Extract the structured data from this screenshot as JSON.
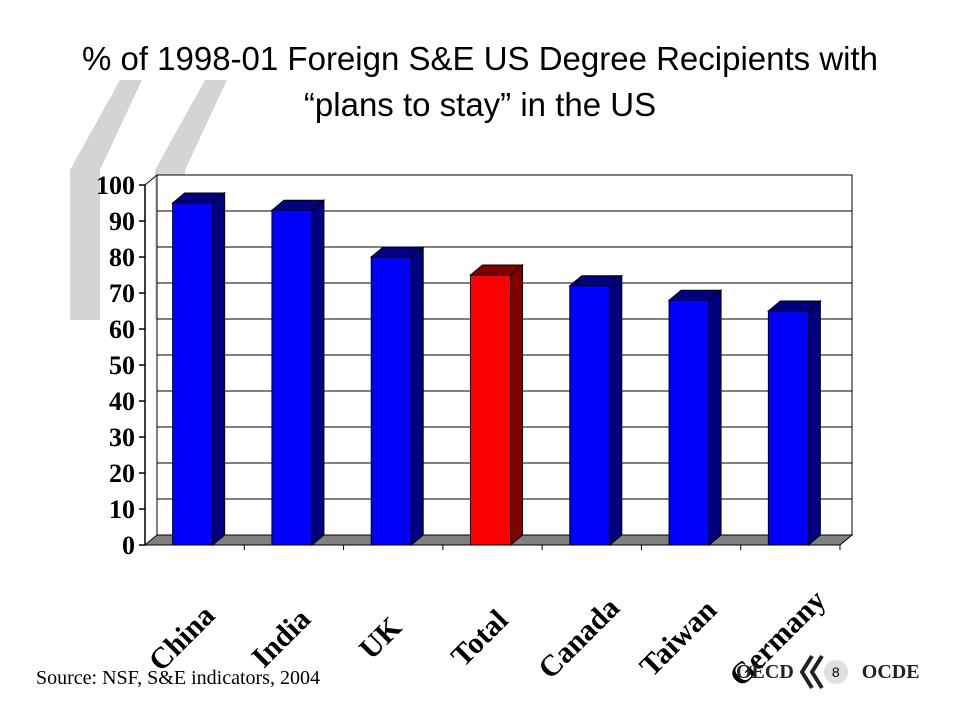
{
  "slide": {
    "title_line1": "% of 1998-01 Foreign S&E US Degree Recipients with",
    "title_line2": "“plans to stay” in the US",
    "source": "Source: NSF, S&E indicators, 2004",
    "logo_left": "OECD",
    "logo_right": "OCDE",
    "page_number": "8"
  },
  "colors": {
    "bar": "#0000ff",
    "bar_dark": "#000080",
    "highlight": "#ff0000",
    "highlight_dark": "#800000",
    "floor": "#808080",
    "decoration": "#d4d4d4"
  },
  "chart_data": {
    "type": "bar",
    "style": "3d",
    "title": "% of 1998-01 Foreign S&E US Degree Recipients with “plans to stay” in the US",
    "categories": [
      "China",
      "India",
      "UK",
      "Total",
      "Canada",
      "Taiwan",
      "Germany"
    ],
    "values": [
      95,
      93,
      80,
      75,
      72,
      68,
      65
    ],
    "highlight": [
      "Total"
    ],
    "ylim": [
      0,
      100
    ],
    "yticks": [
      "0",
      "10",
      "20",
      "30",
      "40",
      "50",
      "60",
      "70",
      "80",
      "90",
      "100"
    ],
    "grid": true,
    "xlabel": "",
    "ylabel": ""
  }
}
